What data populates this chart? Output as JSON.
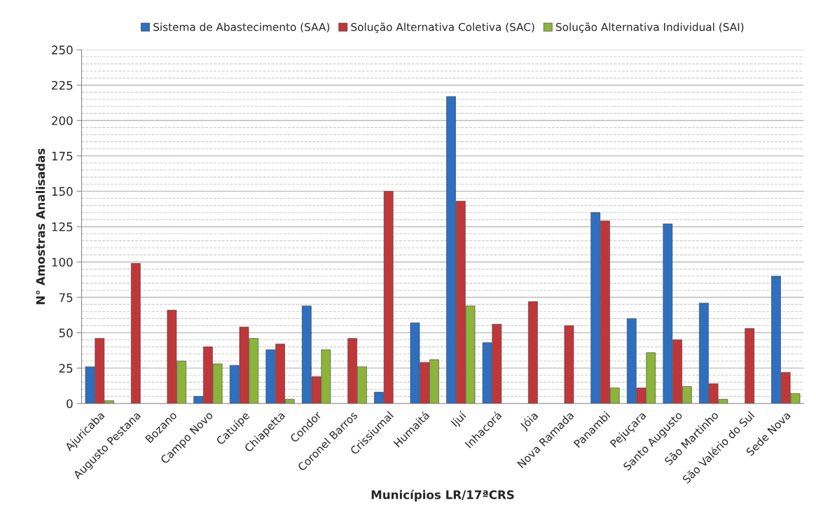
{
  "chart_data": {
    "type": "bar",
    "xlabel": "Municípios LR/17ªCRS",
    "ylabel": "N° Amostras Analisadas",
    "categories": [
      "Ajuricaba",
      "Augusto Pestana",
      "Bozano",
      "Campo Novo",
      "Catuípe",
      "Chiapetta",
      "Condor",
      "Coronel Barros",
      "Crissiumal",
      "Humaitá",
      "Ijuí",
      "Inhacorá",
      "Jóia",
      "Nova Ramada",
      "Panambi",
      "Pejuçara",
      "Santo Augusto",
      "São Martinho",
      "São Valério do Sul",
      "Sede Nova"
    ],
    "series": [
      {
        "name": "Sistema de Abastecimento (SAA)",
        "color": "#2e6fbf",
        "values": [
          26,
          null,
          null,
          5,
          27,
          38,
          69,
          null,
          8,
          57,
          217,
          43,
          null,
          null,
          135,
          60,
          127,
          71,
          null,
          90
        ]
      },
      {
        "name": "Solução Alternativa Coletiva (SAC)",
        "color": "#c0373a",
        "values": [
          46,
          99,
          66,
          40,
          54,
          42,
          19,
          46,
          150,
          29,
          143,
          56,
          72,
          55,
          129,
          11,
          45,
          14,
          53,
          22
        ]
      },
      {
        "name": "Solução Alternativa Individual (SAI)",
        "color": "#8db43a",
        "values": [
          2,
          null,
          30,
          28,
          46,
          3,
          38,
          26,
          null,
          31,
          69,
          null,
          null,
          null,
          11,
          36,
          12,
          3,
          null,
          7
        ]
      }
    ],
    "ylim": [
      0,
      250
    ],
    "yticks": [
      0,
      25,
      50,
      75,
      100,
      125,
      150,
      175,
      200,
      225,
      250
    ],
    "grid": "y",
    "legend": "top"
  }
}
